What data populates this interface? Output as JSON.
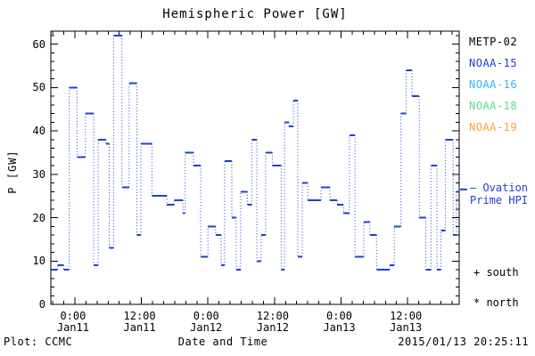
{
  "title": "Hemispheric Power [GW]",
  "axes": {
    "ylabel": "P [GW]",
    "xlabel": "Date and Time",
    "y_ticks": [
      0,
      10,
      20,
      30,
      40,
      50,
      60
    ],
    "y_minor_step": 2,
    "x_minor_step_hours": 2,
    "ylim": [
      0,
      63
    ],
    "xlim_hours_rel_jan11": [
      -4.33,
      69.3
    ]
  },
  "x_tick_labels": [
    {
      "t": 0,
      "time": "0:00",
      "date": "Jan11"
    },
    {
      "t": 12,
      "time": "12:00",
      "date": "Jan11"
    },
    {
      "t": 24,
      "time": "0:00",
      "date": "Jan12"
    },
    {
      "t": 36,
      "time": "12:00",
      "date": "Jan12"
    },
    {
      "t": 48,
      "time": "0:00",
      "date": "Jan13"
    },
    {
      "t": 60,
      "time": "12:00",
      "date": "Jan13"
    }
  ],
  "legend": [
    {
      "label": "METP-02",
      "color": "#000000"
    },
    {
      "label": "NOAA-15",
      "color": "#2040cc"
    },
    {
      "label": "NOAA-16",
      "color": "#33b4f0"
    },
    {
      "label": "NOAA-18",
      "color": "#5fd88d"
    },
    {
      "label": "NOAA-19",
      "color": "#ffa033"
    }
  ],
  "annotations": {
    "ovation": "– Ovation\nPrime HPI",
    "south": "+ south",
    "north": "* north"
  },
  "footer": {
    "left": "Plot: CCMC",
    "center": "Date and Time",
    "right": "2015/01/13 20:25:11"
  },
  "colors": {
    "line": "#2040cc",
    "axis": "#000000",
    "background": "#ffffff"
  },
  "chart_data": {
    "type": "line",
    "style": "step-post, dotted vertical connectors, solid horizontal plateaus",
    "title": "Hemispheric Power [GW]",
    "xlabel": "Date and Time",
    "ylabel": "P [GW]",
    "ylim": [
      0,
      63
    ],
    "xlim_hours_after_jan11_0000": [
      -4.33,
      69.3
    ],
    "x_unit": "hours after 2015-01-11 00:00",
    "y_unit": "GW",
    "grid": false,
    "legend_position": "right-outside",
    "series": [
      {
        "name": "Hemispheric Power (Ovation Prime HPI)",
        "color": "#2040cc",
        "points": [
          [
            -4.3,
            8
          ],
          [
            -3.1,
            9
          ],
          [
            -2.0,
            8
          ],
          [
            -1.0,
            50
          ],
          [
            0.4,
            34
          ],
          [
            1.9,
            44
          ],
          [
            3.4,
            9
          ],
          [
            4.2,
            38
          ],
          [
            5.6,
            37
          ],
          [
            6.2,
            13
          ],
          [
            7.0,
            62
          ],
          [
            8.5,
            27
          ],
          [
            9.8,
            51
          ],
          [
            11.2,
            16
          ],
          [
            11.9,
            37
          ],
          [
            13.9,
            25
          ],
          [
            16.6,
            23
          ],
          [
            17.9,
            24
          ],
          [
            19.5,
            21
          ],
          [
            19.9,
            35
          ],
          [
            21.4,
            32
          ],
          [
            22.7,
            11
          ],
          [
            24.0,
            18
          ],
          [
            25.4,
            16
          ],
          [
            26.4,
            9
          ],
          [
            27.0,
            33
          ],
          [
            28.3,
            20
          ],
          [
            29.1,
            8
          ],
          [
            29.9,
            26
          ],
          [
            31.1,
            23
          ],
          [
            31.9,
            38
          ],
          [
            32.8,
            10
          ],
          [
            33.6,
            16
          ],
          [
            34.4,
            35
          ],
          [
            35.6,
            32
          ],
          [
            37.2,
            8
          ],
          [
            37.8,
            42
          ],
          [
            38.6,
            41
          ],
          [
            39.4,
            47
          ],
          [
            40.2,
            11
          ],
          [
            41.0,
            28
          ],
          [
            42.0,
            24
          ],
          [
            44.4,
            27
          ],
          [
            46.0,
            24
          ],
          [
            47.3,
            23
          ],
          [
            48.4,
            21
          ],
          [
            49.5,
            39
          ],
          [
            50.5,
            11
          ],
          [
            52.1,
            19
          ],
          [
            53.2,
            16
          ],
          [
            54.4,
            8
          ],
          [
            56.8,
            9
          ],
          [
            57.6,
            18
          ],
          [
            58.8,
            44
          ],
          [
            59.7,
            54
          ],
          [
            60.8,
            48
          ],
          [
            62.1,
            20
          ],
          [
            63.3,
            8
          ],
          [
            64.2,
            32
          ],
          [
            65.3,
            8
          ],
          [
            66.0,
            17
          ],
          [
            66.8,
            38
          ],
          [
            68.2,
            16
          ],
          [
            68.8,
            26
          ]
        ]
      }
    ],
    "ovation_marker_gw": 26.5
  }
}
